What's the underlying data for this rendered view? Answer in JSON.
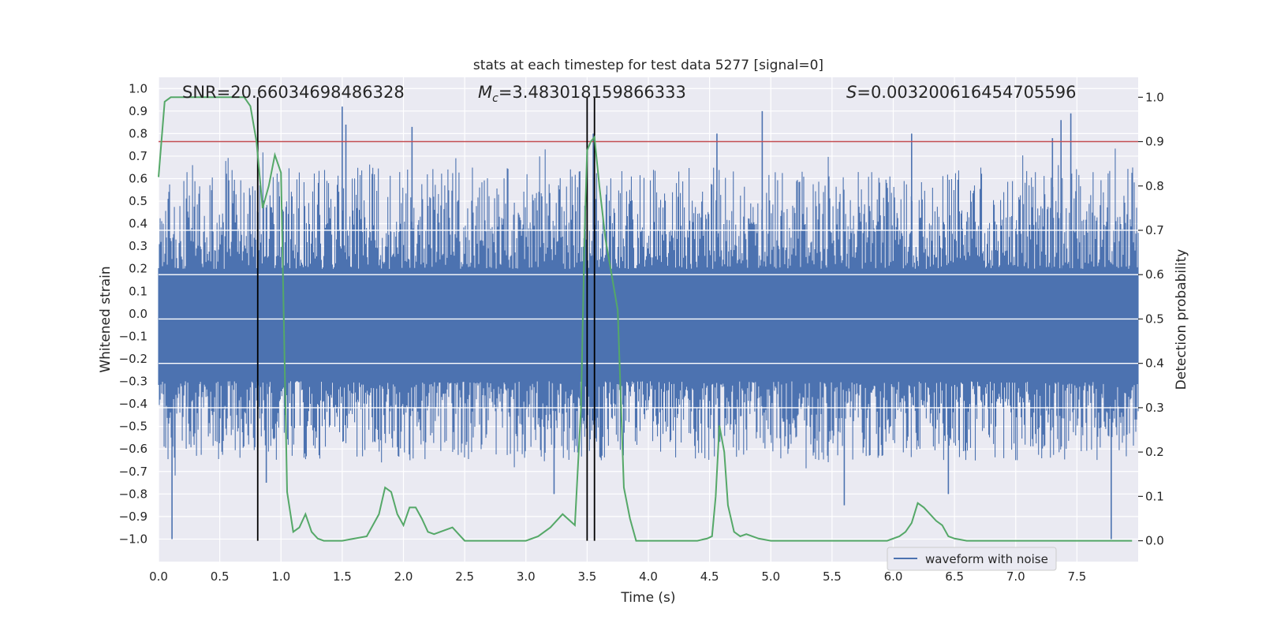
{
  "chart_data": {
    "type": "line",
    "title": "stats at each timestep for test data 5277 [signal=0]",
    "xlabel": "Time (s)",
    "ylabel": "Whitened strain",
    "y2label": "Detection probability",
    "xlim": [
      0.0,
      8.0
    ],
    "ylim": [
      -1.1,
      1.05
    ],
    "y2lim": [
      -0.047,
      1.045
    ],
    "x_ticks": [
      "0.0",
      "0.5",
      "1.0",
      "1.5",
      "2.0",
      "2.5",
      "3.0",
      "3.5",
      "4.0",
      "4.5",
      "5.0",
      "5.5",
      "6.0",
      "6.5",
      "7.0",
      "7.5"
    ],
    "y_ticks": [
      "1.0",
      "0.9",
      "0.8",
      "0.7",
      "0.6",
      "0.5",
      "0.4",
      "0.3",
      "0.2",
      "0.1",
      "0.0",
      "−0.1",
      "−0.2",
      "−0.3",
      "−0.4",
      "−0.5",
      "−0.6",
      "−0.7",
      "−0.8",
      "−0.9",
      "−1.0"
    ],
    "y2_ticks": [
      "1.0",
      "0.9",
      "0.8",
      "0.7",
      "0.6",
      "0.5",
      "0.4",
      "0.3",
      "0.2",
      "0.1",
      "0.0"
    ],
    "annotations": {
      "snr": "SNR=20.66034698486328",
      "mc_symbol": "M",
      "mc_sub": "c",
      "mc_value": "=3.483018159866333",
      "s_symbol": "S",
      "s_value": "=0.003200616454705596"
    },
    "legend": {
      "label": "waveform with noise",
      "placement": "lower-right"
    },
    "grid": true,
    "colors": {
      "waveform": "#4c72b0",
      "probability": "#55a868",
      "threshold": "#c44e52",
      "markers": "#000000",
      "background": "#eaeaf2"
    },
    "threshold": 0.9,
    "vertical_markers": [
      0.81,
      3.5,
      3.56
    ],
    "waveform": {
      "name": "waveform with noise",
      "x_range": [
        0.0,
        8.0
      ],
      "envelope_max": 0.93,
      "envelope_min": -1.0,
      "spikes": [
        {
          "x": 0.11,
          "y": -1.0
        },
        {
          "x": 1.5,
          "y": 0.92
        },
        {
          "x": 1.53,
          "y": 0.84
        },
        {
          "x": 2.07,
          "y": 0.83
        },
        {
          "x": 3.55,
          "y": 0.8
        },
        {
          "x": 4.56,
          "y": 0.8
        },
        {
          "x": 4.93,
          "y": 0.9
        },
        {
          "x": 6.15,
          "y": 0.8
        },
        {
          "x": 7.3,
          "y": 0.78
        },
        {
          "x": 7.37,
          "y": 0.86
        },
        {
          "x": 7.45,
          "y": 0.89
        },
        {
          "x": 7.78,
          "y": -1.0
        },
        {
          "x": 0.88,
          "y": -0.75
        },
        {
          "x": 3.23,
          "y": -0.8
        },
        {
          "x": 5.6,
          "y": -0.85
        },
        {
          "x": 6.45,
          "y": -0.8
        }
      ]
    },
    "probability": {
      "x": [
        0.0,
        0.05,
        0.1,
        0.2,
        0.3,
        0.4,
        0.5,
        0.6,
        0.7,
        0.75,
        0.8,
        0.85,
        0.9,
        0.95,
        1.0,
        1.05,
        1.1,
        1.15,
        1.2,
        1.25,
        1.3,
        1.35,
        1.4,
        1.5,
        1.6,
        1.7,
        1.8,
        1.85,
        1.9,
        1.95,
        2.0,
        2.05,
        2.1,
        2.15,
        2.2,
        2.25,
        2.3,
        2.4,
        2.5,
        2.6,
        2.7,
        2.8,
        3.0,
        3.1,
        3.2,
        3.3,
        3.4,
        3.45,
        3.48,
        3.5,
        3.53,
        3.56,
        3.6,
        3.65,
        3.7,
        3.75,
        3.8,
        3.85,
        3.9,
        4.0,
        4.2,
        4.4,
        4.48,
        4.52,
        4.55,
        4.58,
        4.62,
        4.65,
        4.7,
        4.75,
        4.8,
        4.9,
        5.0,
        5.2,
        5.5,
        5.8,
        5.95,
        6.05,
        6.1,
        6.15,
        6.2,
        6.25,
        6.3,
        6.35,
        6.4,
        6.45,
        6.5,
        6.6,
        6.8,
        7.0,
        7.2,
        7.4,
        7.6,
        7.8,
        7.95
      ],
      "y": [
        0.82,
        0.99,
        1.0,
        1.0,
        1.0,
        1.0,
        1.0,
        1.0,
        1.0,
        0.98,
        0.9,
        0.75,
        0.8,
        0.87,
        0.83,
        0.11,
        0.02,
        0.03,
        0.06,
        0.02,
        0.005,
        0.0,
        0.0,
        0.0,
        0.005,
        0.01,
        0.06,
        0.12,
        0.11,
        0.06,
        0.035,
        0.075,
        0.075,
        0.05,
        0.02,
        0.015,
        0.02,
        0.03,
        0.0,
        0.0,
        0.0,
        0.0,
        0.0,
        0.01,
        0.03,
        0.06,
        0.035,
        0.3,
        0.7,
        0.88,
        0.9,
        0.91,
        0.8,
        0.68,
        0.6,
        0.52,
        0.12,
        0.05,
        0.0,
        0.0,
        0.0,
        0.0,
        0.005,
        0.01,
        0.1,
        0.26,
        0.2,
        0.08,
        0.02,
        0.01,
        0.015,
        0.005,
        0.0,
        0.0,
        0.0,
        0.0,
        0.0,
        0.01,
        0.02,
        0.04,
        0.085,
        0.075,
        0.06,
        0.045,
        0.035,
        0.01,
        0.005,
        0.0,
        0.0,
        0.0,
        0.0,
        0.0,
        0.0,
        0.0,
        0.0
      ]
    }
  }
}
